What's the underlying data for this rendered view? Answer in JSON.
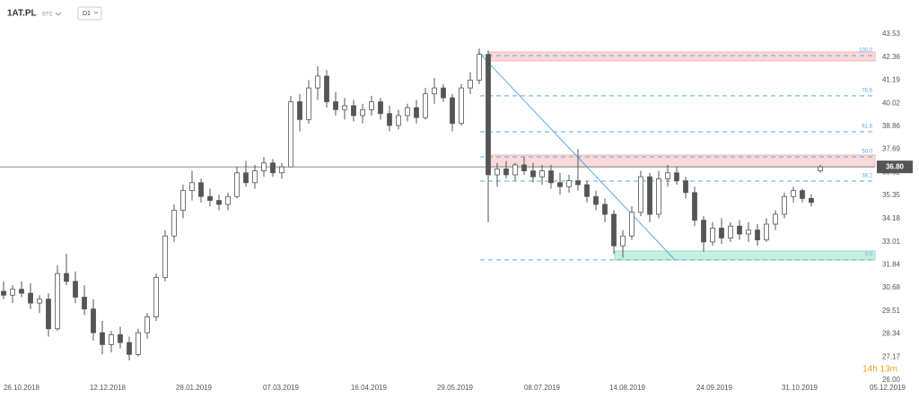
{
  "header": {
    "symbol": "1AT.PL",
    "tag": "BTC",
    "interval": "D1"
  },
  "chart_data": {
    "type": "candlestick",
    "candle_up_color": "#ffffff",
    "candle_down_color": "#555555",
    "candle_stroke": "#555555",
    "candles": [
      [
        30.5,
        31.0,
        30.1,
        30.3
      ],
      [
        30.3,
        30.8,
        29.9,
        30.6
      ],
      [
        30.6,
        31.0,
        30.2,
        30.4
      ],
      [
        30.4,
        30.9,
        29.6,
        29.9
      ],
      [
        29.9,
        30.3,
        29.4,
        30.1
      ],
      [
        30.1,
        30.4,
        28.2,
        28.6
      ],
      [
        28.6,
        31.8,
        28.5,
        31.4
      ],
      [
        31.4,
        32.4,
        30.8,
        31.0
      ],
      [
        31.0,
        31.5,
        29.9,
        30.2
      ],
      [
        30.2,
        30.8,
        29.3,
        29.6
      ],
      [
        29.6,
        30.1,
        28.0,
        28.4
      ],
      [
        28.4,
        29.0,
        27.3,
        27.8
      ],
      [
        27.8,
        28.5,
        27.4,
        28.3
      ],
      [
        28.3,
        28.7,
        27.6,
        27.9
      ],
      [
        27.9,
        28.2,
        27.0,
        27.3
      ],
      [
        27.3,
        28.6,
        27.2,
        28.4
      ],
      [
        28.4,
        29.4,
        28.1,
        29.2
      ],
      [
        29.2,
        31.4,
        29.0,
        31.2
      ],
      [
        31.2,
        33.6,
        31.0,
        33.3
      ],
      [
        33.3,
        34.9,
        33.0,
        34.6
      ],
      [
        34.6,
        35.9,
        34.2,
        35.6
      ],
      [
        35.6,
        36.6,
        35.1,
        36.0
      ],
      [
        36.0,
        36.2,
        35.0,
        35.3
      ],
      [
        35.3,
        35.7,
        34.8,
        35.1
      ],
      [
        35.1,
        35.4,
        34.6,
        34.9
      ],
      [
        34.9,
        35.5,
        34.6,
        35.3
      ],
      [
        35.3,
        36.8,
        35.2,
        36.5
      ],
      [
        36.5,
        37.1,
        35.8,
        36.0
      ],
      [
        36.0,
        36.9,
        35.7,
        36.6
      ],
      [
        36.6,
        37.3,
        36.3,
        37.0
      ],
      [
        37.0,
        37.2,
        36.3,
        36.5
      ],
      [
        36.5,
        37.0,
        36.2,
        36.8
      ],
      [
        36.8,
        40.4,
        36.8,
        40.1
      ],
      [
        40.1,
        40.5,
        38.6,
        39.2
      ],
      [
        39.2,
        41.2,
        39.0,
        40.8
      ],
      [
        40.8,
        41.9,
        40.2,
        41.4
      ],
      [
        41.4,
        41.7,
        39.8,
        40.1
      ],
      [
        40.1,
        40.6,
        39.4,
        39.7
      ],
      [
        39.7,
        40.3,
        39.2,
        39.9
      ],
      [
        39.9,
        40.2,
        39.1,
        39.4
      ],
      [
        39.4,
        40.0,
        39.0,
        39.7
      ],
      [
        39.7,
        40.4,
        39.4,
        40.1
      ],
      [
        40.1,
        40.3,
        39.2,
        39.5
      ],
      [
        39.5,
        39.9,
        38.6,
        38.9
      ],
      [
        38.9,
        39.7,
        38.7,
        39.4
      ],
      [
        39.4,
        40.0,
        39.1,
        39.8
      ],
      [
        39.8,
        40.2,
        39.0,
        39.3
      ],
      [
        39.3,
        40.8,
        39.2,
        40.5
      ],
      [
        40.5,
        41.3,
        40.0,
        40.8
      ],
      [
        40.8,
        41.0,
        40.1,
        40.3
      ],
      [
        40.3,
        40.5,
        38.6,
        39.0
      ],
      [
        39.0,
        41.0,
        38.9,
        40.8
      ],
      [
        40.8,
        41.6,
        40.5,
        41.2
      ],
      [
        41.2,
        42.8,
        41.0,
        42.5
      ],
      [
        42.5,
        42.7,
        34.0,
        36.4
      ],
      [
        36.4,
        37.0,
        35.8,
        36.7
      ],
      [
        36.7,
        37.1,
        36.2,
        36.4
      ],
      [
        36.4,
        37.0,
        36.1,
        36.9
      ],
      [
        36.9,
        37.3,
        36.4,
        36.6
      ],
      [
        36.6,
        37.0,
        36.0,
        36.3
      ],
      [
        36.3,
        36.9,
        35.9,
        36.6
      ],
      [
        36.6,
        36.9,
        35.7,
        36.0
      ],
      [
        36.0,
        36.5,
        35.4,
        35.8
      ],
      [
        35.8,
        36.4,
        35.5,
        36.1
      ],
      [
        36.1,
        37.7,
        35.6,
        35.9
      ],
      [
        35.9,
        36.1,
        35.0,
        35.3
      ],
      [
        35.3,
        35.6,
        34.6,
        34.9
      ],
      [
        34.9,
        35.2,
        34.0,
        34.4
      ],
      [
        34.4,
        34.6,
        32.4,
        32.8
      ],
      [
        32.8,
        33.6,
        32.2,
        33.3
      ],
      [
        33.3,
        34.8,
        33.1,
        34.5
      ],
      [
        34.5,
        36.6,
        34.3,
        36.3
      ],
      [
        36.3,
        36.5,
        34.0,
        34.4
      ],
      [
        34.4,
        36.6,
        34.2,
        36.2
      ],
      [
        36.2,
        36.9,
        35.8,
        36.5
      ],
      [
        36.5,
        36.8,
        35.9,
        36.1
      ],
      [
        36.1,
        36.3,
        35.2,
        35.5
      ],
      [
        35.5,
        35.8,
        33.8,
        34.1
      ],
      [
        34.1,
        34.3,
        32.5,
        33.0
      ],
      [
        33.0,
        34.0,
        32.8,
        33.7
      ],
      [
        33.7,
        34.2,
        32.9,
        33.2
      ],
      [
        33.2,
        34.0,
        33.0,
        33.8
      ],
      [
        33.8,
        34.1,
        33.1,
        33.4
      ],
      [
        33.4,
        34.0,
        33.0,
        33.6
      ],
      [
        33.6,
        33.9,
        32.8,
        33.1
      ],
      [
        33.1,
        34.2,
        33.0,
        33.9
      ],
      [
        33.9,
        34.6,
        33.6,
        34.4
      ],
      [
        34.4,
        35.5,
        34.2,
        35.3
      ],
      [
        35.3,
        35.8,
        35.0,
        35.6
      ],
      [
        35.6,
        35.7,
        35.0,
        35.2
      ],
      [
        35.2,
        35.4,
        34.8,
        35.0
      ],
      [
        36.6,
        36.9,
        36.5,
        36.8
      ]
    ],
    "xlim": [
      -0.4,
      99.6
    ],
    "xticks": [
      {
        "value": 2,
        "label": "26.10.2018"
      },
      {
        "value": 11.6,
        "label": "12.12.2018"
      },
      {
        "value": 21.2,
        "label": "28.01.2019"
      },
      {
        "value": 30.9,
        "label": "07.03.2019"
      },
      {
        "value": 40.7,
        "label": "16.04.2019"
      },
      {
        "value": 50.3,
        "label": "29.05.2019"
      },
      {
        "value": 60,
        "label": "08.07.2019"
      },
      {
        "value": 69.5,
        "label": "14.08.2019"
      },
      {
        "value": 79.2,
        "label": "24.09.2019"
      },
      {
        "value": 88.7,
        "label": "31.10.2019"
      },
      {
        "value": 98.5,
        "label": "05.12.2019"
      }
    ],
    "ylim": [
      26.0,
      43.53
    ],
    "yticks": [
      43.53,
      42.36,
      41.19,
      40.02,
      38.86,
      37.69,
      36.52,
      35.35,
      34.18,
      33.01,
      31.84,
      30.68,
      29.51,
      28.34,
      27.17,
      {
        "value": 26.0,
        "label": "26.00"
      }
    ],
    "grid": false,
    "current_price": {
      "value": 36.8,
      "label": "36.80"
    },
    "zones": [
      {
        "color": "#f3b3b3",
        "xlim": [
          54.1,
          97.1
        ],
        "ylim": [
          42.17,
          42.62
        ]
      },
      {
        "color": "#f3b3b3",
        "xlim": [
          54.1,
          97.1
        ],
        "ylim": [
          36.81,
          37.4
        ]
      },
      {
        "color": "#8fe0bd",
        "xlim": [
          68.1,
          97.1
        ],
        "ylim": [
          32.09,
          32.54
        ]
      }
    ],
    "fib": {
      "color": "#5aa9e6",
      "x": [
        53.1,
        97.1
      ],
      "levels": [
        {
          "label": "100.0",
          "value": 42.44
        },
        {
          "label": "78.6",
          "value": 40.4
        },
        {
          "label": "61.8",
          "value": 38.58
        },
        {
          "label": "50.0",
          "value": 37.31
        },
        {
          "label": "38.2",
          "value": 36.08
        },
        {
          "label": "0.0",
          "value": 32.09
        }
      ]
    },
    "trendline": {
      "color": "#5aa9e6",
      "x": [
        52.9,
        74.8
      ],
      "values": [
        42.62,
        32.09
      ]
    }
  },
  "countdown": "14h 13m"
}
